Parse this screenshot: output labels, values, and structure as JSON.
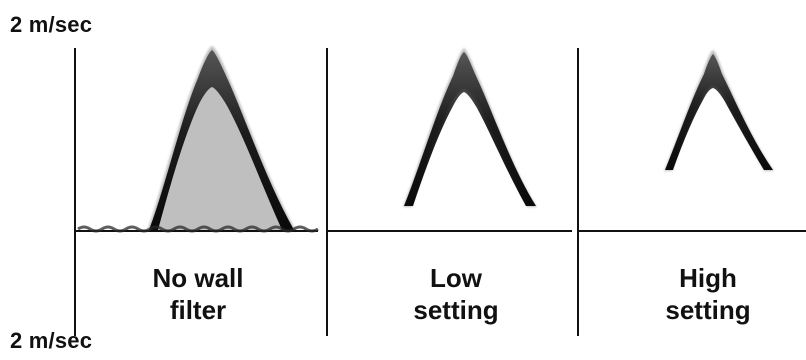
{
  "scale": {
    "top_label": "2 m/sec",
    "bottom_label": "2 m/sec"
  },
  "panels": [
    {
      "label_line1": "No wall",
      "label_line2": "filter",
      "retains_low_velocity": true
    },
    {
      "label_line1": "Low",
      "label_line2": "setting",
      "retains_low_velocity": false
    },
    {
      "label_line1": "High",
      "label_line2": "setting",
      "retains_low_velocity": false
    }
  ],
  "colors": {
    "ink": "#111111",
    "spectrum": "#1a1a1a",
    "background": "#ffffff"
  }
}
